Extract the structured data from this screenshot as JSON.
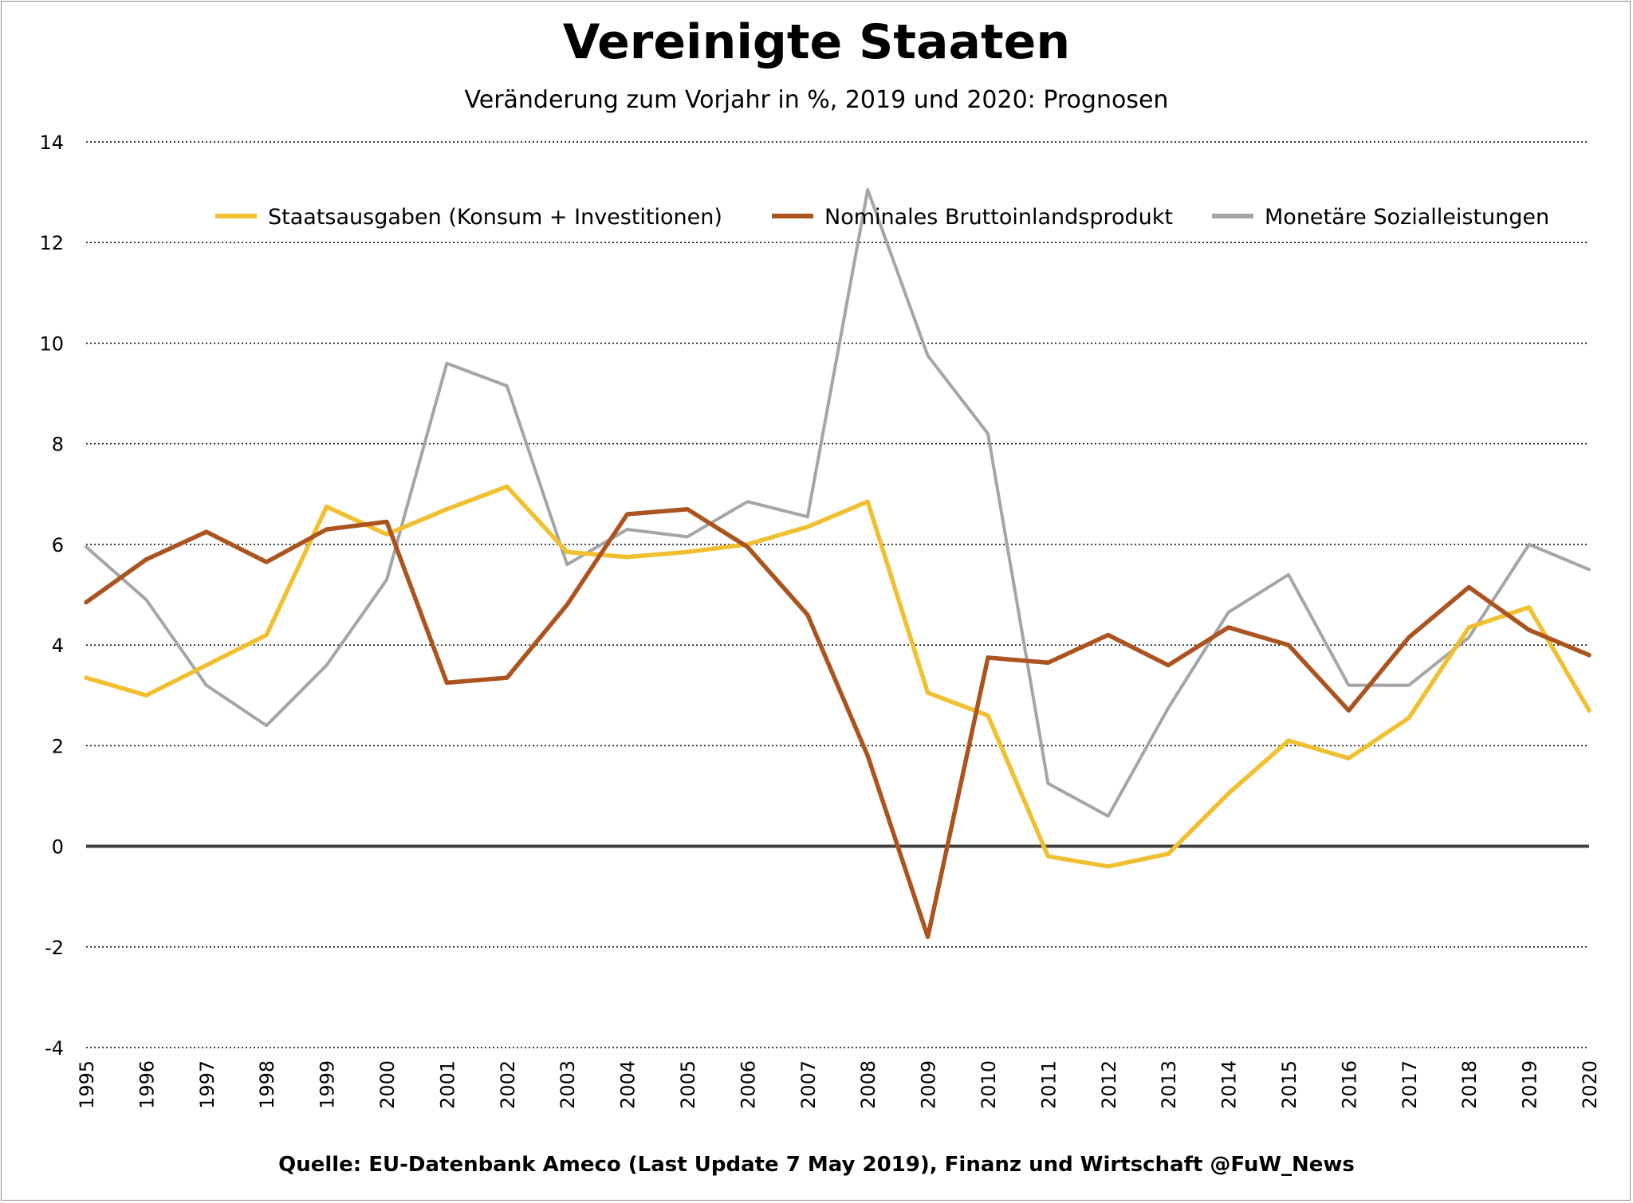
{
  "chart_data": {
    "type": "line",
    "title": "Vereinigte Staaten",
    "subtitle": "Veränderung zum Vorjahr in %, 2019 und 2020: Prognosen",
    "source": "Quelle: EU-Datenbank Ameco (Last Update 7 May 2019), Finanz und Wirtschaft @FuW_News",
    "xlabel": "",
    "ylabel": "",
    "ylim": [
      -4,
      14
    ],
    "yticks": [
      -4,
      -2,
      0,
      2,
      4,
      6,
      8,
      10,
      12,
      14
    ],
    "grid": true,
    "legend_position": "top",
    "x": [
      "1995",
      "1996",
      "1997",
      "1998",
      "1999",
      "2000",
      "2001",
      "2002",
      "2003",
      "2004",
      "2005",
      "2006",
      "2007",
      "2008",
      "2009",
      "2010",
      "2011",
      "2012",
      "2013",
      "2014",
      "2015",
      "2016",
      "2017",
      "2018",
      "2019",
      "2020"
    ],
    "series": [
      {
        "name": "Staatsausgaben (Konsum + Investitionen)",
        "color": "#f0c030",
        "values": [
          3.35,
          3.0,
          3.6,
          4.2,
          6.75,
          6.2,
          6.7,
          7.15,
          5.85,
          5.75,
          5.85,
          6.0,
          6.35,
          6.85,
          3.05,
          2.6,
          -0.2,
          -0.4,
          -0.15,
          1.05,
          2.1,
          1.75,
          2.55,
          4.35,
          4.75,
          2.7
        ]
      },
      {
        "name": "Nominales Bruttoinlandsprodukt",
        "color": "#ac5420",
        "values": [
          4.85,
          5.7,
          6.25,
          5.65,
          6.3,
          6.45,
          3.25,
          3.35,
          4.8,
          6.6,
          6.7,
          5.95,
          4.6,
          1.8,
          -1.8,
          3.75,
          3.65,
          4.2,
          3.6,
          4.35,
          4.0,
          2.7,
          4.15,
          5.15,
          4.3,
          3.8
        ]
      },
      {
        "name": "Monetäre Sozialleistungen",
        "color": "#a5a5a5",
        "values": [
          5.95,
          4.9,
          3.2,
          2.4,
          3.6,
          5.3,
          9.6,
          9.15,
          5.6,
          6.3,
          6.15,
          6.85,
          6.55,
          13.05,
          9.75,
          8.2,
          1.25,
          0.6,
          2.75,
          4.65,
          5.4,
          3.2,
          3.2,
          4.15,
          6.0,
          5.5
        ]
      }
    ]
  }
}
